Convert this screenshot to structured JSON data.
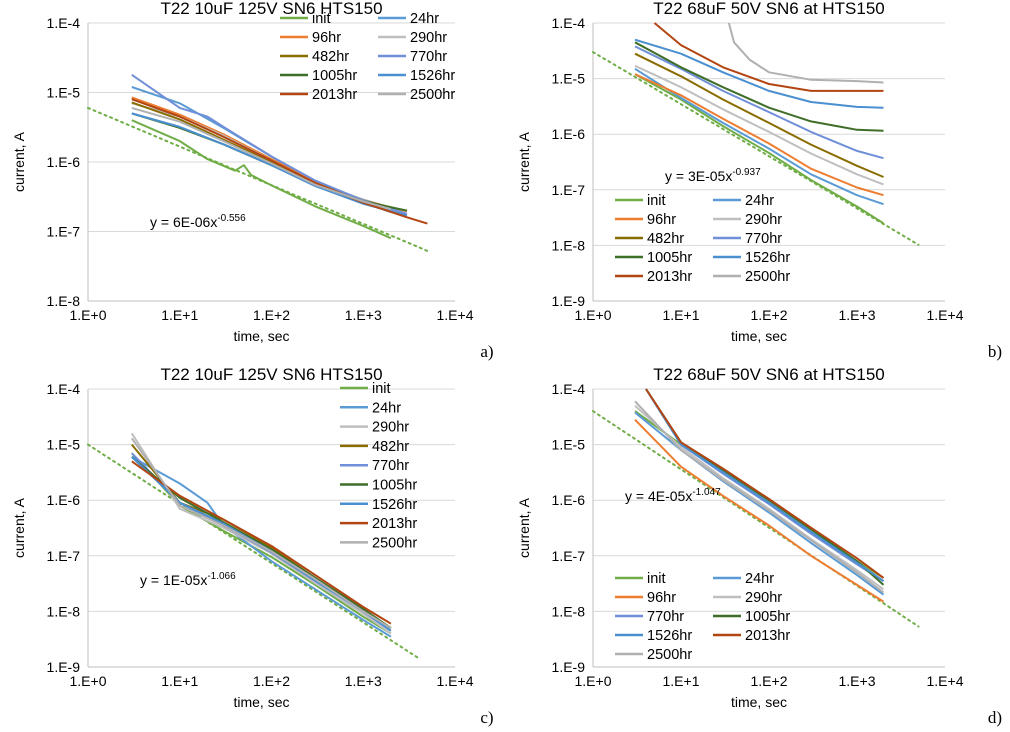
{
  "colors": {
    "init": "#70ad47",
    "24hr": "#5b9bd5",
    "96hr": "#ed7d31",
    "290hr": "#bfbfbf",
    "482hr": "#8a6d00",
    "770hr": "#6f8fd8",
    "1005hr": "#3e6e28",
    "1526hr": "#4a8fd0",
    "2013hr": "#b24511",
    "2500hr": "#b0b0b0",
    "fit": "#70ad47"
  },
  "chart_data": [
    {
      "panel_label": "a)",
      "type": "line",
      "title": "T22 10uF 125V SN6 HTS150",
      "xlabel": "time, sec",
      "ylabel": "current, A",
      "x_scale": "log",
      "y_scale": "log",
      "xlim": [
        1,
        10000
      ],
      "ylim": [
        1e-08,
        0.0001
      ],
      "x_tick_labels": [
        "1.E+0",
        "1.E+1",
        "1.E+2",
        "1.E+3",
        "1.E+4"
      ],
      "y_tick_labels": [
        "1.E-8",
        "1.E-7",
        "1.E-6",
        "1.E-5",
        "1.E-4"
      ],
      "legend": {
        "position": "top-right",
        "columns": 2,
        "entries": [
          "init",
          "24hr",
          "96hr",
          "290hr",
          "482hr",
          "770hr",
          "1005hr",
          "1526hr",
          "2013hr",
          "2500hr"
        ]
      },
      "trendline": {
        "label": "y = 6E-06x",
        "exponent": "-0.556",
        "coef": 6e-06,
        "power": -0.556,
        "x_range": [
          1,
          5000
        ],
        "style": "dotted"
      },
      "series": [
        {
          "name": "init",
          "x": [
            3,
            10,
            20,
            40,
            50,
            60,
            100,
            300,
            1000,
            2000
          ],
          "y": [
            4e-06,
            2e-06,
            1.1e-06,
            7.5e-07,
            9e-07,
            6.5e-07,
            4.6e-07,
            2.3e-07,
            1.2e-07,
            8e-08
          ]
        },
        {
          "name": "24hr",
          "x": [
            3,
            10,
            30,
            100,
            300,
            1000,
            2000
          ],
          "y": [
            1.2e-05,
            7e-06,
            3.1e-06,
            1.2e-06,
            5.2e-07,
            2.6e-07,
            1.9e-07
          ]
        },
        {
          "name": "96hr",
          "x": [
            3,
            10,
            30,
            100,
            300,
            1000,
            3000
          ],
          "y": [
            8.5e-06,
            4.8e-06,
            2.5e-06,
            1.1e-06,
            5.3e-07,
            2.8e-07,
            1.95e-07
          ]
        },
        {
          "name": "290hr",
          "x": [
            3,
            10,
            30,
            100,
            300,
            1000,
            2000
          ],
          "y": [
            7e-06,
            4.5e-06,
            2.4e-06,
            1.05e-06,
            5e-07,
            2.9e-07,
            2.2e-07
          ]
        },
        {
          "name": "482hr",
          "x": [
            3,
            10,
            30,
            100,
            300,
            1000,
            2000
          ],
          "y": [
            7.2e-06,
            4.1e-06,
            2.1e-06,
            1e-06,
            5e-07,
            2.8e-07,
            2.2e-07
          ]
        },
        {
          "name": "770hr",
          "x": [
            3,
            10,
            20,
            30,
            100,
            300,
            1000,
            3000
          ],
          "y": [
            1.8e-05,
            6e-06,
            4.5e-06,
            3.2e-06,
            1.2e-06,
            5.4e-07,
            2.8e-07,
            1.8e-07
          ]
        },
        {
          "name": "1005hr",
          "x": [
            3,
            10,
            30,
            100,
            300,
            1000,
            3000
          ],
          "y": [
            5e-06,
            3.1e-06,
            1.8e-06,
            9e-07,
            4.7e-07,
            2.7e-07,
            2e-07
          ]
        },
        {
          "name": "1526hr",
          "x": [
            3,
            10,
            30,
            100,
            300,
            1000,
            3000
          ],
          "y": [
            5e-06,
            3.2e-06,
            1.8e-06,
            9e-07,
            4.5e-07,
            2.5e-07,
            1.7e-07
          ]
        },
        {
          "name": "2013hr",
          "x": [
            3,
            10,
            30,
            100,
            300,
            1000,
            3000,
            5000
          ],
          "y": [
            8e-06,
            4.5e-06,
            2.3e-06,
            1.05e-06,
            5e-07,
            2.6e-07,
            1.6e-07,
            1.3e-07
          ]
        },
        {
          "name": "2500hr",
          "x": [
            3,
            10,
            30,
            100,
            300,
            1000,
            2000
          ],
          "y": [
            6e-06,
            3.8e-06,
            2e-06,
            9.5e-07,
            4.7e-07,
            2.7e-07,
            2.1e-07
          ]
        }
      ]
    },
    {
      "panel_label": "b)",
      "type": "line",
      "title": "T22 68uF 50V SN6 at HTS150",
      "xlabel": "time, sec",
      "ylabel": "current, A",
      "x_scale": "log",
      "y_scale": "log",
      "xlim": [
        1,
        10000
      ],
      "ylim": [
        1e-09,
        0.0001
      ],
      "x_tick_labels": [
        "1.E+0",
        "1.E+1",
        "1.E+2",
        "1.E+3",
        "1.E+4"
      ],
      "y_tick_labels": [
        "1.E-9",
        "1.E-8",
        "1.E-7",
        "1.E-6",
        "1.E-5",
        "1.E-4"
      ],
      "legend": {
        "position": "bottom-left",
        "columns": 2,
        "entries": [
          "init",
          "24hr",
          "96hr",
          "290hr",
          "482hr",
          "770hr",
          "1005hr",
          "1526hr",
          "2013hr",
          "2500hr"
        ]
      },
      "trendline": {
        "label": "y = 3E-05x",
        "exponent": "-0.937",
        "coef": 3e-05,
        "power": -0.937,
        "x_range": [
          1,
          5000
        ],
        "style": "dotted"
      },
      "series": [
        {
          "name": "init",
          "x": [
            3,
            10,
            30,
            100,
            300,
            1000,
            2000
          ],
          "y": [
            1.2e-05,
            4.2e-06,
            1.4e-06,
            4.6e-07,
            1.5e-07,
            5e-08,
            2.5e-08
          ]
        },
        {
          "name": "24hr",
          "x": [
            3,
            10,
            30,
            100,
            300,
            1000,
            2000
          ],
          "y": [
            1.5e-05,
            4.5e-06,
            1.6e-06,
            5.5e-07,
            1.9e-07,
            8e-08,
            5.5e-08
          ]
        },
        {
          "name": "96hr",
          "x": [
            3,
            10,
            30,
            100,
            300,
            1000,
            2000
          ],
          "y": [
            1.2e-05,
            5e-06,
            1.9e-06,
            6.8e-07,
            2.4e-07,
            1.1e-07,
            8e-08
          ]
        },
        {
          "name": "290hr",
          "x": [
            3,
            10,
            30,
            100,
            300,
            1000,
            2000
          ],
          "y": [
            1.7e-05,
            7e-06,
            2.8e-06,
            1.1e-06,
            4.5e-07,
            1.9e-07,
            1.25e-07
          ]
        },
        {
          "name": "482hr",
          "x": [
            3,
            10,
            30,
            100,
            300,
            1000,
            2000
          ],
          "y": [
            2.8e-05,
            1.1e-05,
            4.2e-06,
            1.6e-06,
            6.5e-07,
            2.7e-07,
            1.7e-07
          ]
        },
        {
          "name": "770hr",
          "x": [
            3,
            10,
            30,
            100,
            300,
            1000,
            2000
          ],
          "y": [
            3.8e-05,
            1.5e-05,
            6e-06,
            2.5e-06,
            1.1e-06,
            5e-07,
            3.7e-07
          ]
        },
        {
          "name": "1005hr",
          "x": [
            3,
            10,
            30,
            100,
            300,
            1000,
            2000
          ],
          "y": [
            4.5e-05,
            1.6e-05,
            7e-06,
            3e-06,
            1.7e-06,
            1.2e-06,
            1.15e-06
          ]
        },
        {
          "name": "1526hr",
          "x": [
            3,
            10,
            30,
            100,
            300,
            1000,
            2000
          ],
          "y": [
            5e-05,
            2.8e-05,
            1.3e-05,
            6e-06,
            3.8e-06,
            3.1e-06,
            3e-06
          ]
        },
        {
          "name": "2013hr",
          "x": [
            5,
            10,
            30,
            100,
            300,
            1000,
            2000
          ],
          "y": [
            0.0001,
            4e-05,
            1.6e-05,
            8e-06,
            6e-06,
            6e-06,
            6e-06
          ]
        },
        {
          "name": "2500hr",
          "x": [
            35,
            40,
            60,
            100,
            300,
            1000,
            2000
          ],
          "y": [
            0.0001,
            4.5e-05,
            2.2e-05,
            1.3e-05,
            9.5e-06,
            9e-06,
            8.5e-06
          ]
        }
      ]
    },
    {
      "panel_label": "c)",
      "type": "line",
      "title": "T22 10uF 125V SN6 HTS150",
      "xlabel": "time, sec",
      "ylabel": "current, A",
      "x_scale": "log",
      "y_scale": "log",
      "xlim": [
        1,
        10000
      ],
      "ylim": [
        1e-09,
        0.0001
      ],
      "x_tick_labels": [
        "1.E+0",
        "1.E+1",
        "1.E+2",
        "1.E+3",
        "1.E+4"
      ],
      "y_tick_labels": [
        "1.E-9",
        "1.E-8",
        "1.E-7",
        "1.E-6",
        "1.E-5",
        "1.E-4"
      ],
      "legend": {
        "position": "top-right",
        "columns": 1,
        "entries": [
          "init",
          "24hr",
          "290hr",
          "482hr",
          "770hr",
          "1005hr",
          "1526hr",
          "2013hr",
          "2500hr"
        ]
      },
      "trendline": {
        "label": "y = 1E-05x",
        "exponent": "-1.066",
        "coef": 1e-05,
        "power": -1.066,
        "x_range": [
          1,
          4000
        ],
        "style": "dotted"
      },
      "series": [
        {
          "name": "init",
          "x": [
            3,
            10,
            30,
            100,
            300,
            1000,
            2000
          ],
          "y": [
            7e-06,
            8e-07,
            2.8e-07,
            9.5e-08,
            3e-08,
            8e-09,
            4e-09
          ]
        },
        {
          "name": "24hr",
          "x": [
            3,
            10,
            20,
            30,
            100,
            300,
            1000,
            2000
          ],
          "y": [
            6e-06,
            2e-06,
            9e-07,
            3.5e-07,
            8e-08,
            2.5e-08,
            7e-09,
            3.5e-09
          ]
        },
        {
          "name": "290hr",
          "x": [
            3,
            10,
            30,
            100,
            300,
            1000,
            2000
          ],
          "y": [
            1.6e-05,
            7e-07,
            3.2e-07,
            1.1e-07,
            3.2e-08,
            9e-09,
            4e-09
          ]
        },
        {
          "name": "482hr",
          "x": [
            3,
            10,
            30,
            100,
            300,
            1000,
            2000
          ],
          "y": [
            1e-05,
            9e-07,
            4.5e-07,
            1.4e-07,
            4e-08,
            1.1e-08,
            5e-09
          ]
        },
        {
          "name": "770hr",
          "x": [
            3,
            10,
            30,
            100,
            300,
            1000,
            2000
          ],
          "y": [
            7e-06,
            9e-07,
            3.5e-07,
            1.15e-07,
            3.5e-08,
            1e-08,
            4.5e-09
          ]
        },
        {
          "name": "1005hr",
          "x": [
            3,
            10,
            30,
            100,
            300,
            1000,
            2000
          ],
          "y": [
            6e-06,
            1.1e-06,
            4e-07,
            1.3e-07,
            4e-08,
            1.1e-08,
            5e-09
          ]
        },
        {
          "name": "1526hr",
          "x": [
            3,
            10,
            30,
            100,
            300,
            1000,
            2000
          ],
          "y": [
            6e-06,
            9e-07,
            3.8e-07,
            1.2e-07,
            3.6e-08,
            1e-08,
            4.5e-09
          ]
        },
        {
          "name": "2013hr",
          "x": [
            3,
            10,
            30,
            100,
            300,
            1000,
            2000
          ],
          "y": [
            5e-06,
            1.2e-06,
            4.5e-07,
            1.5e-07,
            4.5e-08,
            1.2e-08,
            6e-09
          ]
        },
        {
          "name": "2500hr",
          "x": [
            3,
            10,
            30,
            100,
            300,
            1000,
            2000
          ],
          "y": [
            1.3e-05,
            8e-07,
            3.5e-07,
            1.2e-07,
            3.8e-08,
            1e-08,
            5e-09
          ]
        }
      ]
    },
    {
      "panel_label": "d)",
      "type": "line",
      "title": "T22 68uF 50V SN6 at HTS150",
      "xlabel": "time, sec",
      "ylabel": "current, A",
      "x_scale": "log",
      "y_scale": "log",
      "xlim": [
        1,
        10000
      ],
      "ylim": [
        1e-09,
        0.0001
      ],
      "x_tick_labels": [
        "1.E+0",
        "1.E+1",
        "1.E+2",
        "1.E+3",
        "1.E+4"
      ],
      "y_tick_labels": [
        "1.E-9",
        "1.E-8",
        "1.E-7",
        "1.E-6",
        "1.E-5",
        "1.E-4"
      ],
      "legend": {
        "position": "bottom-left",
        "columns": 2,
        "entries": [
          "init",
          "24hr",
          "96hr",
          "290hr",
          "770hr",
          "1005hr",
          "1526hr",
          "2013hr",
          "2500hr"
        ]
      },
      "trendline": {
        "label": "y = 4E-05x",
        "exponent": "-1.047",
        "coef": 4e-05,
        "power": -1.047,
        "x_range": [
          1,
          5000
        ],
        "style": "dotted"
      },
      "series": [
        {
          "name": "init",
          "x": [
            3,
            10,
            30,
            100,
            300,
            1000,
            2000
          ],
          "y": [
            4e-05,
            1e-05,
            3.5e-06,
            1e-06,
            3e-07,
            8e-08,
            4e-08
          ]
        },
        {
          "name": "24hr",
          "x": [
            3,
            10,
            30,
            100,
            300,
            1000,
            2000
          ],
          "y": [
            3.8e-05,
            8e-06,
            2.2e-06,
            6e-07,
            1.7e-07,
            4.5e-08,
            2e-08
          ]
        },
        {
          "name": "96hr",
          "x": [
            3,
            10,
            30,
            100,
            300,
            1000,
            2000
          ],
          "y": [
            2.8e-05,
            4e-06,
            1.2e-06,
            3.5e-07,
            1e-07,
            3e-08,
            1.5e-08
          ]
        },
        {
          "name": "290hr",
          "x": [
            3,
            10,
            30,
            100,
            300,
            1000,
            2000
          ],
          "y": [
            5e-05,
            9e-06,
            2.5e-06,
            7e-07,
            2e-07,
            5.5e-08,
            2.5e-08
          ]
        },
        {
          "name": "770hr",
          "x": [
            4,
            10,
            30,
            100,
            300,
            1000,
            2000
          ],
          "y": [
            0.0001,
            1e-05,
            3e-06,
            8.5e-07,
            2.5e-07,
            7e-08,
            3.5e-08
          ]
        },
        {
          "name": "1005hr",
          "x": [
            4,
            10,
            30,
            100,
            300,
            1000,
            2000
          ],
          "y": [
            0.0001,
            1.1e-05,
            3.5e-06,
            1e-06,
            3e-07,
            8e-08,
            3e-08
          ]
        },
        {
          "name": "1526hr",
          "x": [
            4,
            10,
            30,
            100,
            300,
            1000,
            2000
          ],
          "y": [
            0.0001,
            1e-05,
            3.2e-06,
            9e-07,
            2.7e-07,
            7.5e-08,
            3.5e-08
          ]
        },
        {
          "name": "2013hr",
          "x": [
            4,
            10,
            30,
            100,
            300,
            1000,
            2000
          ],
          "y": [
            0.0001,
            1.1e-05,
            3.7e-06,
            1.05e-06,
            3.2e-07,
            9e-08,
            4e-08
          ]
        },
        {
          "name": "2500hr",
          "x": [
            3,
            10,
            30,
            100,
            300,
            1000,
            2000
          ],
          "y": [
            6e-05,
            8e-06,
            2.3e-06,
            6.5e-07,
            1.9e-07,
            5e-08,
            2.2e-08
          ]
        }
      ]
    }
  ]
}
